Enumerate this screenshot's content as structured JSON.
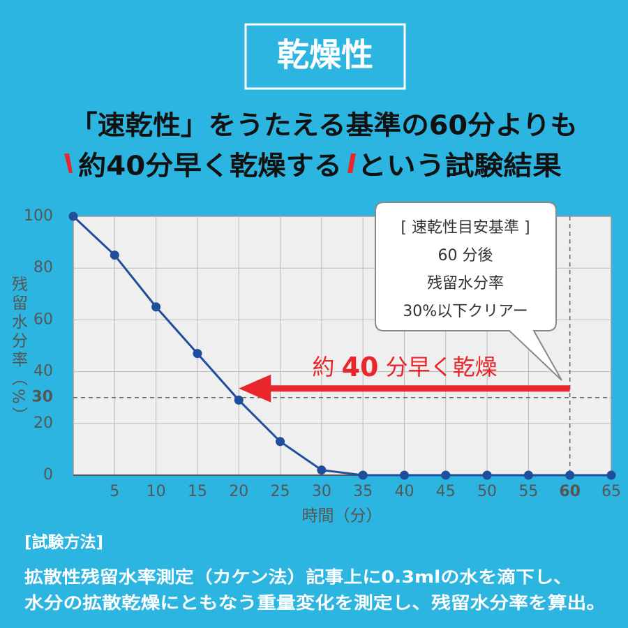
{
  "title": "乾燥性",
  "headline": {
    "line1": "「速乾性」をうたえる基準の60分よりも",
    "line2_emphasis": "約40分早く乾燥する",
    "line2_rest": "という試験結果"
  },
  "chart_data": {
    "type": "line",
    "x": [
      0,
      5,
      10,
      15,
      20,
      25,
      30,
      35,
      40,
      45,
      50,
      55,
      60,
      65
    ],
    "values": [
      100,
      85,
      65,
      47,
      29,
      13,
      2,
      0,
      0,
      0,
      0,
      0,
      0,
      0
    ],
    "color": "#1f4e9c",
    "x_label": "時間（分）",
    "y_label": "残留水分率（%）",
    "xlim": [
      0,
      65
    ],
    "ylim": [
      0,
      100
    ],
    "xticks": [
      5,
      10,
      15,
      20,
      25,
      30,
      35,
      40,
      45,
      50,
      55,
      60,
      65
    ],
    "yticks": [
      0,
      20,
      30,
      40,
      60,
      80,
      100
    ],
    "grid": true,
    "reference": {
      "x": 60,
      "y": 30
    },
    "callout": [
      "[ 速乾性目安基準 ]",
      "60 分後",
      "残留水分率",
      "30%以下クリアー"
    ],
    "arrow": {
      "from": 60,
      "to": 20,
      "label": [
        "約 ",
        "40",
        " 分早く乾燥"
      ],
      "color": "#e8262c"
    }
  },
  "method": {
    "heading": "[試験方法]",
    "lines": [
      "拡散性残留水率測定（カケン法）記事上に0.3mlの水を滴下し、",
      "水分の拡散乾燥にともなう重量変化を測定し、残留水分率を算出。"
    ]
  }
}
